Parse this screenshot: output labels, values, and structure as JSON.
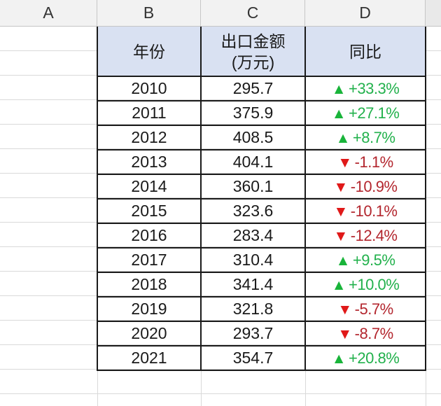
{
  "columns": [
    "A",
    "B",
    "C",
    "D"
  ],
  "table": {
    "headers": {
      "year": "年份",
      "amount_line1": "出口金额",
      "amount_line2": "(万元)",
      "yoy": "同比"
    },
    "rows": [
      {
        "year": "2010",
        "amount": "295.7",
        "change": "+33.3%",
        "dir": "up",
        "arrow": "▲"
      },
      {
        "year": "2011",
        "amount": "375.9",
        "change": "+27.1%",
        "dir": "up",
        "arrow": "▲"
      },
      {
        "year": "2012",
        "amount": "408.5",
        "change": "+8.7%",
        "dir": "up",
        "arrow": "▲"
      },
      {
        "year": "2013",
        "amount": "404.1",
        "change": "-1.1%",
        "dir": "down",
        "arrow": "▼"
      },
      {
        "year": "2014",
        "amount": "360.1",
        "change": "-10.9%",
        "dir": "down",
        "arrow": "▼"
      },
      {
        "year": "2015",
        "amount": "323.6",
        "change": "-10.1%",
        "dir": "down",
        "arrow": "▼"
      },
      {
        "year": "2016",
        "amount": "283.4",
        "change": "-12.4%",
        "dir": "down",
        "arrow": "▼"
      },
      {
        "year": "2017",
        "amount": "310.4",
        "change": "+9.5%",
        "dir": "up",
        "arrow": "▲"
      },
      {
        "year": "2018",
        "amount": "341.4",
        "change": "+10.0%",
        "dir": "up",
        "arrow": "▲"
      },
      {
        "year": "2019",
        "amount": "321.8",
        "change": "-5.7%",
        "dir": "down",
        "arrow": "▼"
      },
      {
        "year": "2020",
        "amount": "293.7",
        "change": "-8.7%",
        "dir": "down",
        "arrow": "▼"
      },
      {
        "year": "2021",
        "amount": "354.7",
        "change": "+20.8%",
        "dir": "up",
        "arrow": "▲"
      }
    ]
  },
  "colors": {
    "header_fill": "#d9e1f2",
    "up_text": "#22b14c",
    "up_arrow": "#19b43a",
    "down_text": "#b3262e",
    "down_arrow": "#e01919"
  }
}
